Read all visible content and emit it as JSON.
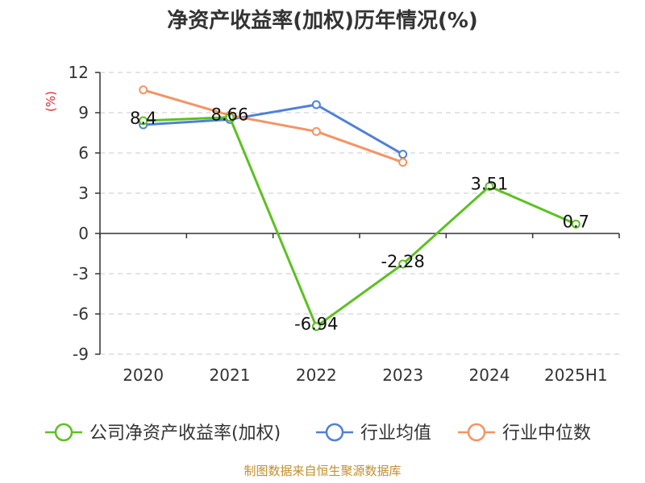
{
  "chart_data": {
    "type": "line",
    "title": "净资产收益率(加权)历年情况(%)",
    "ylabel": "(%)",
    "xlabel": "",
    "categories": [
      "2020",
      "2021",
      "2022",
      "2023",
      "2024",
      "2025H1"
    ],
    "ylim": [
      -9,
      12
    ],
    "yticks": [
      12,
      9,
      6,
      3,
      0,
      -3,
      -6,
      -9
    ],
    "grid": true,
    "legend_position": "bottom",
    "series": [
      {
        "name": "公司净资产收益率(加权)",
        "color": "#5cc121",
        "values": [
          8.4,
          8.66,
          -6.94,
          -2.28,
          3.51,
          0.7
        ],
        "labels": [
          "8.4",
          "8.66",
          "-6.94",
          "-2.28",
          "3.51",
          "0.7"
        ]
      },
      {
        "name": "行业均值",
        "color": "#4f80d8",
        "values": [
          8.1,
          8.5,
          9.6,
          5.9,
          null,
          null
        ]
      },
      {
        "name": "行业中位数",
        "color": "#f49464",
        "values": [
          10.7,
          8.8,
          7.6,
          5.3,
          null,
          null
        ]
      }
    ]
  },
  "footer": {
    "source": "制图数据来自恒生聚源数据库"
  }
}
